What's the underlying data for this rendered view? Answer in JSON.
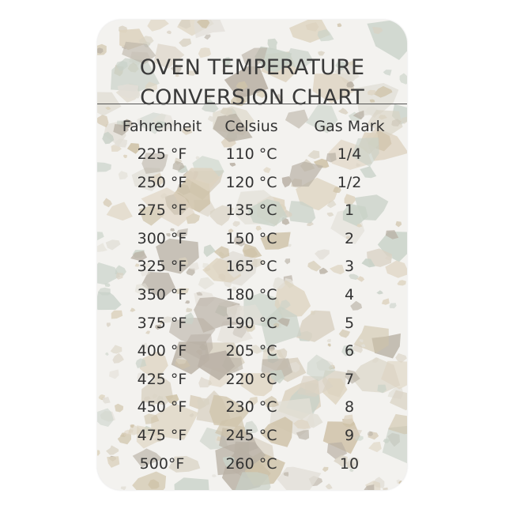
{
  "title": {
    "line1": "OVEN TEMPERATURE",
    "line2": "CONVERSION CHART"
  },
  "colors": {
    "text": "#333333",
    "background": "#f3f2ef",
    "chips": [
      "#d9d2c3",
      "#c9d2c8",
      "#ddd3bf",
      "#b9b1a5",
      "#e2dfd7",
      "#cfc3a9"
    ]
  },
  "table": {
    "headers": [
      "Fahrenheit",
      "Celsius",
      "Gas Mark"
    ],
    "rows": [
      [
        "225 °F",
        "110 °C",
        "1/4"
      ],
      [
        "250 °F",
        "120 °C",
        "1/2"
      ],
      [
        "275 °F",
        "135 °C",
        "1"
      ],
      [
        "300 °F",
        "150 °C",
        "2"
      ],
      [
        "325 °F",
        "165 °C",
        "3"
      ],
      [
        "350 °F",
        "180 °C",
        "4"
      ],
      [
        "375 °F",
        "190 °C",
        "5"
      ],
      [
        "400 °F",
        "205 °C",
        "6"
      ],
      [
        "425 °F",
        "220 °C",
        "7"
      ],
      [
        "450 °F",
        "230 °C",
        "8"
      ],
      [
        "475 °F",
        "245 °C",
        "9"
      ],
      [
        "500°F",
        "260 °C",
        "10"
      ]
    ]
  }
}
